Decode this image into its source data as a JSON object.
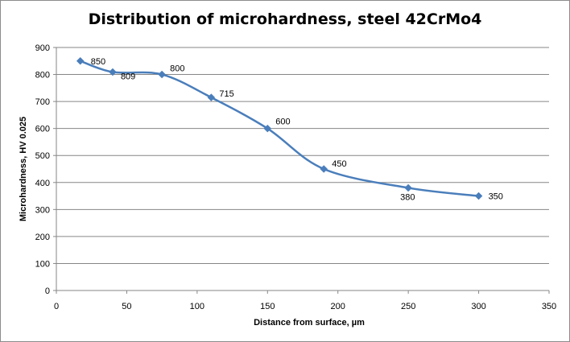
{
  "chart_data": {
    "type": "scatter",
    "title": "Distribution of microhardness, steel 42CrMo4",
    "xlabel": "Distance from surface, µm",
    "ylabel": "Microhardness, HV 0.025",
    "xlim": [
      0,
      350
    ],
    "ylim": [
      0,
      900
    ],
    "x_ticks": [
      0,
      50,
      100,
      150,
      200,
      250,
      300,
      350
    ],
    "y_ticks": [
      0,
      100,
      200,
      300,
      400,
      500,
      600,
      700,
      800,
      900
    ],
    "grid": "horizontal",
    "legend": "none",
    "series": [
      {
        "points": [
          {
            "x": 17,
            "y": 850
          },
          {
            "x": 40,
            "y": 809
          },
          {
            "x": 75,
            "y": 800
          },
          {
            "x": 110,
            "y": 715
          },
          {
            "x": 150,
            "y": 600
          },
          {
            "x": 190,
            "y": 450
          },
          {
            "x": 250,
            "y": 380
          },
          {
            "x": 300,
            "y": 350
          }
        ],
        "data_labels": [
          "850",
          "809",
          "800",
          "715",
          "600",
          "450",
          "380",
          "350"
        ],
        "line": "smooth",
        "marker": "diamond",
        "color": "#4a7ebb"
      }
    ]
  }
}
